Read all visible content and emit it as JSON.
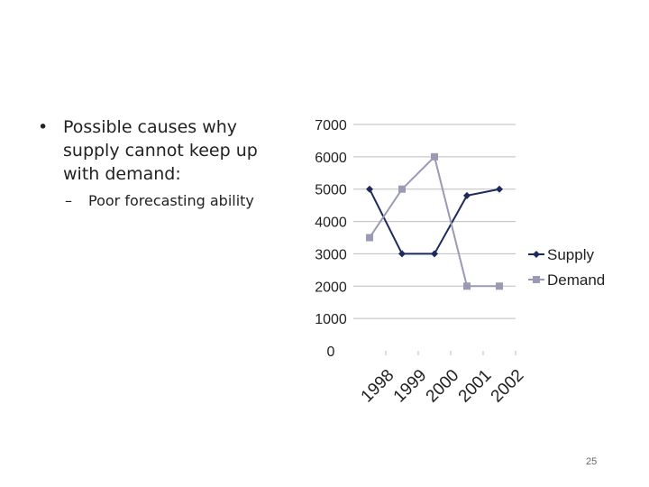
{
  "slide": {
    "bullet_main": "Possible causes why supply cannot keep up with demand:",
    "bullet_sub": "Poor forecasting ability",
    "bullet_symbol": "•",
    "sub_symbol": "–",
    "page_number": "25"
  },
  "chart_data": {
    "type": "line",
    "title": "",
    "xlabel": "",
    "ylabel": "",
    "categories": [
      "1998",
      "1999",
      "2000",
      "2001",
      "2002"
    ],
    "ylim": [
      0,
      7000
    ],
    "yticks": [
      0,
      1000,
      2000,
      3000,
      4000,
      5000,
      6000,
      7000
    ],
    "grid": true,
    "legend_position": "right",
    "series": [
      {
        "name": "Supply",
        "values": [
          5000,
          3000,
          3000,
          4800,
          5000
        ],
        "color": "#1f2a5c",
        "marker": "diamond"
      },
      {
        "name": "Demand",
        "values": [
          3500,
          5000,
          6000,
          2000,
          2000
        ],
        "color": "#9a9ab4",
        "marker": "square"
      }
    ]
  }
}
